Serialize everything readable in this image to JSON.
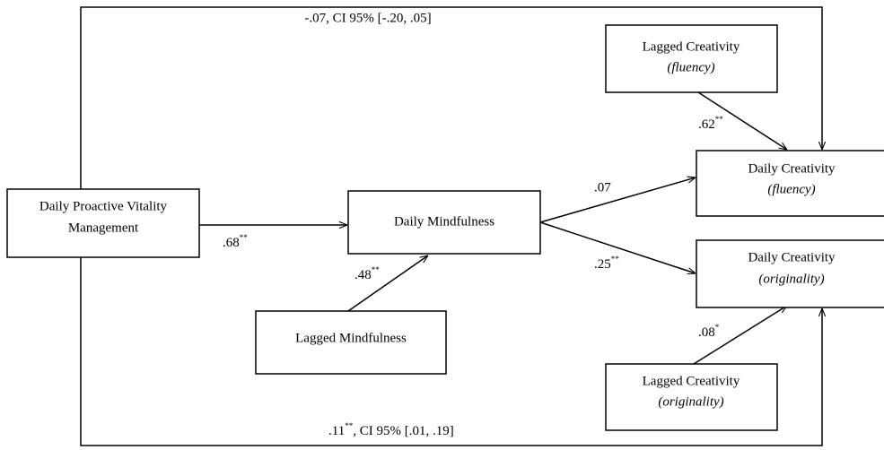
{
  "nodes": [
    {
      "line1": "Daily Proactive Vitality",
      "line2": "Management"
    },
    {
      "line1": "Daily Mindfulness"
    },
    {
      "line1": "Lagged Mindfulness"
    },
    {
      "line1": "Lagged Creativity",
      "line2": "(fluency)"
    },
    {
      "line1": "Daily Creativity",
      "line2": "(fluency)"
    },
    {
      "line1": "Daily Creativity",
      "line2": "(originality)"
    },
    {
      "line1": "Lagged Creativity",
      "line2": "(originality)"
    }
  ],
  "edges": [
    {
      "text": ".68",
      "sup": "**"
    },
    {
      "text": ".48",
      "sup": "**"
    },
    {
      "text": ".07"
    },
    {
      "text": ".25",
      "sup": "**"
    },
    {
      "text": ".62",
      "sup": "**"
    },
    {
      "text": ".08",
      "sup": "*"
    },
    {
      "text": "-.07, CI 95% [-.20, .05]"
    },
    {
      "text": ".11",
      "sup": "**",
      "rest": ", CI 95% [.01, .19]"
    }
  ]
}
